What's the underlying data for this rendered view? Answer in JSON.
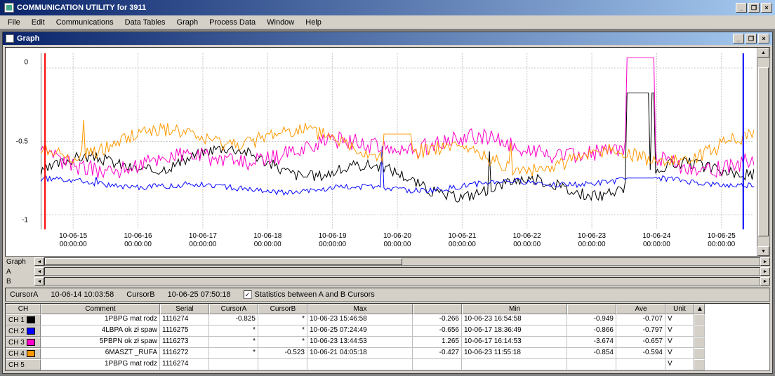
{
  "app_title": "COMMUNICATION UTILITY for 3911",
  "menus": [
    "File",
    "Edit",
    "Communications",
    "Data Tables",
    "Graph",
    "Process Data",
    "Window",
    "Help"
  ],
  "inner_title": "Graph",
  "chart": {
    "background_color": "#ffffff",
    "grid_color": "#c0c0c0",
    "ylim": [
      -1.1,
      0.1
    ],
    "yticks": [
      {
        "v": 0,
        "pct": 8,
        "label": "0"
      },
      {
        "v": -0.5,
        "pct": 50,
        "label": "-0.5"
      },
      {
        "v": -1,
        "pct": 92,
        "label": "-1"
      }
    ],
    "xticks": [
      {
        "l1": "10-06-15",
        "l2": "00:00:00"
      },
      {
        "l1": "10-06-16",
        "l2": "00:00:00"
      },
      {
        "l1": "10-06-17",
        "l2": "00:00:00"
      },
      {
        "l1": "10-06-18",
        "l2": "00:00:00"
      },
      {
        "l1": "10-06-19",
        "l2": "00:00:00"
      },
      {
        "l1": "10-06-20",
        "l2": "00:00:00"
      },
      {
        "l1": "10-06-21",
        "l2": "00:00:00"
      },
      {
        "l1": "10-06-22",
        "l2": "00:00:00"
      },
      {
        "l1": "10-06-23",
        "l2": "00:00:00"
      },
      {
        "l1": "10-06-24",
        "l2": "00:00:00"
      },
      {
        "l1": "10-06-25",
        "l2": "00:00:00"
      }
    ],
    "series": [
      {
        "name": "CH1",
        "color": "#000000",
        "base": -0.72,
        "amp": 0.18,
        "noise": 0.04,
        "peak_x": 0.84,
        "peak_h": 0.55
      },
      {
        "name": "CH2",
        "color": "#0000ff",
        "base": -0.8,
        "amp": 0.05,
        "noise": 0.02,
        "peak_x": 0.84,
        "peak_h": 0.05
      },
      {
        "name": "CH3",
        "color": "#ff00c8",
        "base": -0.58,
        "amp": 0.12,
        "noise": 0.06,
        "peak_x": 0.84,
        "peak_h": 0.65
      },
      {
        "name": "CH4",
        "color": "#ff9900",
        "base": -0.55,
        "amp": 0.15,
        "noise": 0.05,
        "peak_x": 0.5,
        "peak_h": 0.1
      }
    ],
    "cursor_a_color": "#ff0000",
    "cursor_b_color": "#0000ff",
    "cursor_a_x": 0.006,
    "cursor_b_x": 0.985
  },
  "hscroll": {
    "graph_label": "Graph",
    "a_label": "A",
    "b_label": "B",
    "graph_thumb": {
      "left_pct": 0,
      "width_pct": 50
    }
  },
  "cursorbar": {
    "cursorA_label": "CursorA",
    "cursorA_value": "10-06-14 10:03:58",
    "cursorB_label": "CursorB",
    "cursorB_value": "10-06-25 07:50:18",
    "stats_checked": true,
    "stats_label": "Statistics between A and B Cursors"
  },
  "table": {
    "headers": [
      "CH",
      "Comment",
      "Serial",
      "CursorA",
      "CursorB",
      "Max",
      "",
      "Min",
      "",
      "Ave",
      "Unit"
    ],
    "rows": [
      {
        "ch": "CH 1",
        "color": "#000000",
        "comment": "1PBPG mat rodz",
        "serial": "1116274",
        "ca": "-0.825",
        "cb": "*",
        "maxd": "10-06-23 15:46:58",
        "maxv": "-0.266",
        "mind": "10-06-23 16:54:58",
        "minv": "-0.949",
        "ave": "-0.707",
        "unit": "V"
      },
      {
        "ch": "CH 2",
        "color": "#0000ff",
        "comment": "4LBPA ok zł spaw",
        "serial": "1116275",
        "ca": "*",
        "cb": "*",
        "maxd": "10-06-25 07:24:49",
        "maxv": "-0.656",
        "mind": "10-06-17 18:36:49",
        "minv": "-0.866",
        "ave": "-0.797",
        "unit": "V"
      },
      {
        "ch": "CH 3",
        "color": "#ff00c8",
        "comment": "5PBPN ok zł spaw",
        "serial": "1116273",
        "ca": "*",
        "cb": "*",
        "maxd": "10-06-23 13:44:53",
        "maxv": "1.265",
        "mind": "10-06-17 16:14:53",
        "minv": "-3.674",
        "ave": "-0.657",
        "unit": "V"
      },
      {
        "ch": "CH 4",
        "color": "#ff9900",
        "comment": "6MASZT _RUFA",
        "serial": "1116272",
        "ca": "*",
        "cb": "-0.523",
        "maxd": "10-06-21 04:05:18",
        "maxv": "-0.427",
        "mind": "10-06-23 11:55:18",
        "minv": "-0.854",
        "ave": "-0.594",
        "unit": "V"
      },
      {
        "ch": "CH 5",
        "color": "",
        "comment": "1PBPG mat rodz",
        "serial": "1116274",
        "ca": "",
        "cb": "",
        "maxd": "",
        "maxv": "",
        "mind": "",
        "minv": "",
        "ave": "",
        "unit": "V"
      }
    ]
  }
}
